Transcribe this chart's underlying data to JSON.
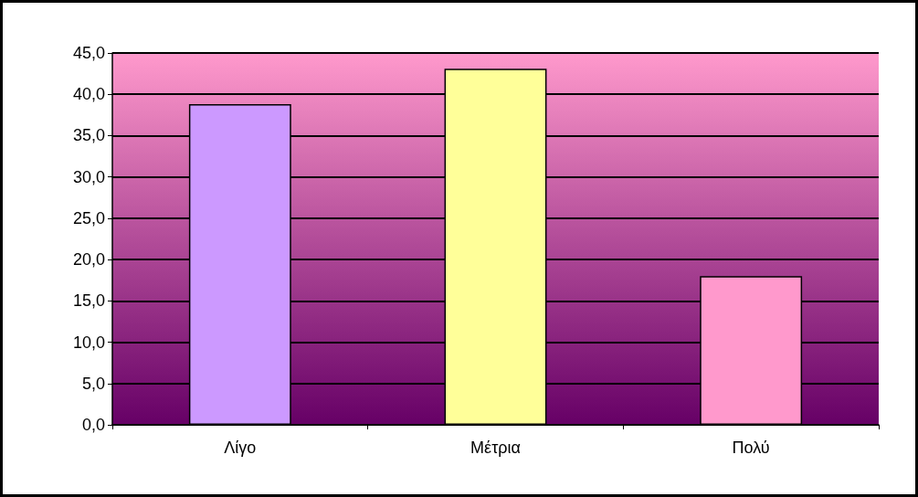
{
  "chart_data": {
    "type": "bar",
    "categories": [
      "Λίγο",
      "Μέτρια",
      "Πολύ"
    ],
    "values": [
      38.8,
      43.1,
      18.0
    ],
    "colors": [
      "#cc99ff",
      "#ffff99",
      "#ff99cc"
    ],
    "ylim": [
      0,
      45
    ],
    "yticks": [
      {
        "value": 0,
        "label": "0,0"
      },
      {
        "value": 5,
        "label": "5,0"
      },
      {
        "value": 10,
        "label": "10,0"
      },
      {
        "value": 15,
        "label": "15,0"
      },
      {
        "value": 20,
        "label": "20,0"
      },
      {
        "value": 25,
        "label": "25,0"
      },
      {
        "value": 30,
        "label": "30,0"
      },
      {
        "value": 35,
        "label": "35,0"
      },
      {
        "value": 40,
        "label": "40,0"
      },
      {
        "value": 45,
        "label": "45,0"
      }
    ],
    "grid": "y"
  }
}
